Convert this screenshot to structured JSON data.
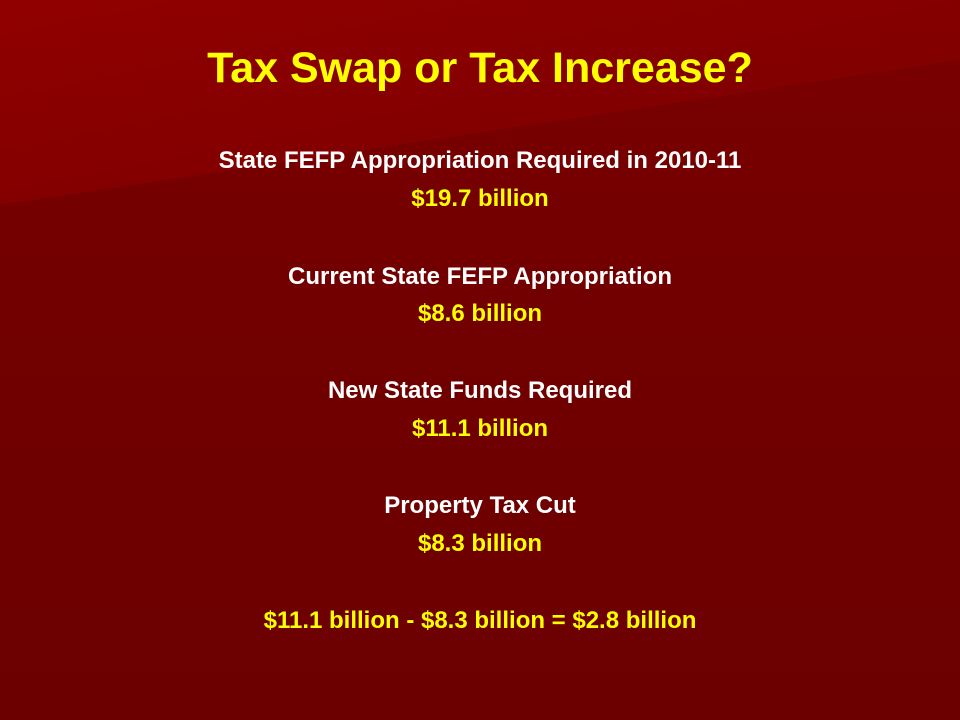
{
  "slide": {
    "title": "Tax Swap or Tax Increase?",
    "items": [
      {
        "label": "State FEFP Appropriation Required in 2010-11",
        "value": "$19.7 billion"
      },
      {
        "label": "Current State FEFP Appropriation",
        "value": "$8.6 billion"
      },
      {
        "label": "New State Funds Required",
        "value": "$11.1 billion"
      },
      {
        "label": "Property Tax Cut",
        "value": "$8.3 billion"
      }
    ],
    "equation": "$11.1 billion - $8.3 billion = $2.8 billion"
  },
  "colors": {
    "background": "#720000",
    "highlight": "#8c0000",
    "title": "#ffff00",
    "label": "#ffffff",
    "value": "#ffff00"
  }
}
